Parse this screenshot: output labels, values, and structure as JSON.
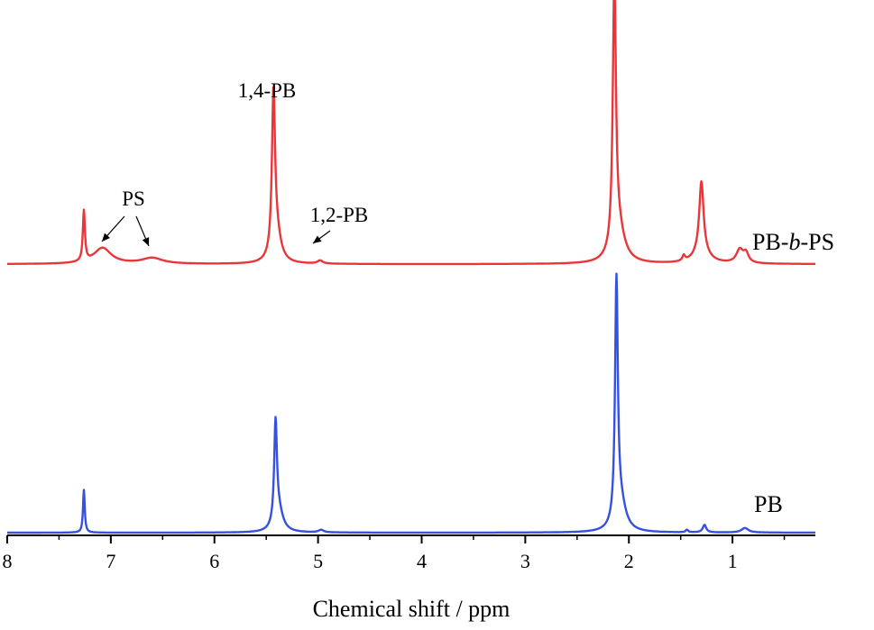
{
  "chart_data": {
    "type": "line",
    "title": "",
    "xlabel": "Chemical shift / ppm",
    "ylabel": "",
    "xlim": [
      8,
      0.2
    ],
    "x_reversed": true,
    "xticks": [
      8,
      7,
      6,
      5,
      4,
      3,
      2,
      1
    ],
    "grid": false,
    "legend": "none",
    "series": [
      {
        "name": "PB-b-PS",
        "label_parts": [
          "PB-",
          "b",
          "-PS"
        ],
        "color": "#e8363b",
        "baseline": 0.02,
        "peaks": [
          {
            "x": 7.26,
            "height": 0.19,
            "width": 0.012
          },
          {
            "x": 7.08,
            "height": 0.06,
            "width": 0.1
          },
          {
            "x": 6.6,
            "height": 0.022,
            "width": 0.12
          },
          {
            "x": 5.43,
            "height": 0.6,
            "width": 0.018
          },
          {
            "x": 5.4,
            "height": 0.1,
            "width": 0.05
          },
          {
            "x": 4.98,
            "height": 0.012,
            "width": 0.03
          },
          {
            "x": 2.14,
            "height": 1.0,
            "width": 0.018
          },
          {
            "x": 2.1,
            "height": 0.12,
            "width": 0.07
          },
          {
            "x": 1.47,
            "height": 0.02,
            "width": 0.015
          },
          {
            "x": 1.3,
            "height": 0.27,
            "width": 0.025
          },
          {
            "x": 1.3,
            "height": 0.04,
            "width": 0.09
          },
          {
            "x": 0.93,
            "height": 0.05,
            "width": 0.04
          },
          {
            "x": 0.87,
            "height": 0.035,
            "width": 0.03
          }
        ]
      },
      {
        "name": "PB",
        "label_parts": [
          "PB"
        ],
        "color": "#3650e0",
        "baseline": 0.0,
        "peaks": [
          {
            "x": 7.26,
            "height": 0.17,
            "width": 0.01
          },
          {
            "x": 5.41,
            "height": 0.4,
            "width": 0.016
          },
          {
            "x": 5.38,
            "height": 0.08,
            "width": 0.05
          },
          {
            "x": 4.97,
            "height": 0.01,
            "width": 0.03
          },
          {
            "x": 2.12,
            "height": 0.95,
            "width": 0.016
          },
          {
            "x": 2.08,
            "height": 0.11,
            "width": 0.06
          },
          {
            "x": 1.44,
            "height": 0.01,
            "width": 0.015
          },
          {
            "x": 1.27,
            "height": 0.03,
            "width": 0.02
          },
          {
            "x": 0.88,
            "height": 0.018,
            "width": 0.04
          }
        ]
      }
    ],
    "annotations": [
      {
        "text": "PS",
        "points_to": [
          7.08,
          6.6
        ],
        "series": "PB-b-PS"
      },
      {
        "text": "1,4-PB",
        "points_to": [
          5.43
        ],
        "series": "PB-b-PS"
      },
      {
        "text": "1,2-PB",
        "points_to": [
          4.98
        ],
        "series": "PB-b-PS"
      }
    ]
  }
}
